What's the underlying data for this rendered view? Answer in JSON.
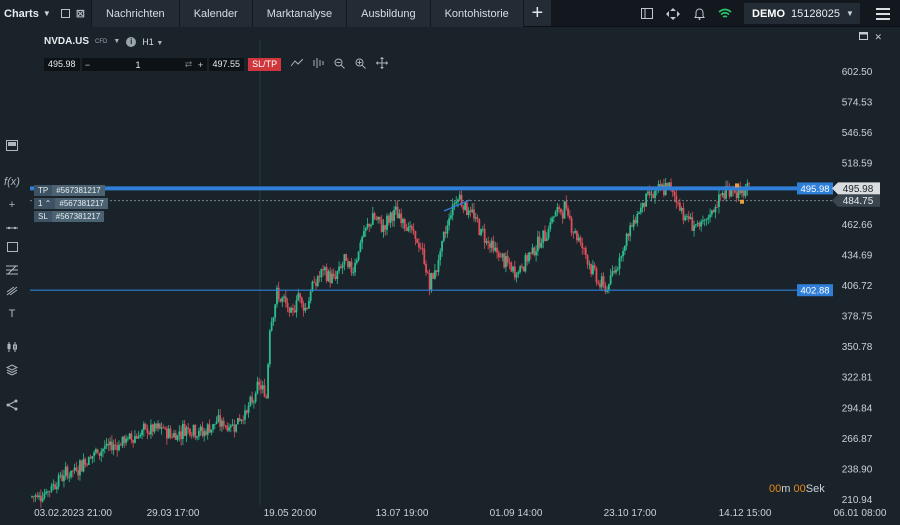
{
  "topbar": {
    "charts_label": "Charts",
    "tabs": [
      "Nachrichten",
      "Kalender",
      "Marktanalyse",
      "Ausbildung",
      "Kontohistorie"
    ],
    "plus": "+",
    "account_mode": "DEMO",
    "account_number": "15128025"
  },
  "header": {
    "symbol": "NVDA.US",
    "symbol_type": "CFD",
    "timeframe": "H1",
    "bid": "495.98",
    "volume": "1",
    "ask": "497.55",
    "sltp_label": "SL/TP"
  },
  "orders": {
    "tp_tag": "TP",
    "tp_id": "#567381217",
    "pos_tag": "1",
    "pos_id": "#567381217",
    "sl_tag": "SL",
    "sl_id": "#567381217"
  },
  "price_labels": {
    "upper_line": "495.98",
    "current": "484.75",
    "lower_line": "402.88"
  },
  "countdown": {
    "minutes": "00",
    "m_suffix": "m",
    "seconds": "00",
    "s_suffix": "Sek"
  },
  "chart_data": {
    "type": "candlestick",
    "y_ticks": [
      "602.50",
      "574.53",
      "546.56",
      "518.59",
      "495.98",
      "462.66",
      "434.69",
      "406.72",
      "378.75",
      "350.78",
      "322.81",
      "294.84",
      "266.87",
      "238.90",
      "210.94"
    ],
    "x_ticks": [
      "03.02.2023 21:00",
      "29.03 17:00",
      "19.05 20:00",
      "13.07 19:00",
      "01.09 14:00",
      "23.10 17:00",
      "14.12 15:00",
      "06.01 08:00"
    ],
    "ylim": [
      210.94,
      602.5
    ],
    "horizontal_lines": [
      {
        "value": 495.98,
        "color": "#2f7fd8",
        "style": "thick"
      },
      {
        "value": 484.75,
        "color": "#aab3ba",
        "style": "dashed"
      },
      {
        "value": 402.88,
        "color": "#2f7fd8",
        "style": "thin"
      }
    ],
    "trend_anchors": [
      [
        0,
        214
      ],
      [
        4,
        218
      ],
      [
        8,
        232
      ],
      [
        12,
        238
      ],
      [
        16,
        250
      ],
      [
        20,
        258
      ],
      [
        24,
        262
      ],
      [
        28,
        268
      ],
      [
        32,
        274
      ],
      [
        36,
        276
      ],
      [
        40,
        270
      ],
      [
        44,
        278
      ],
      [
        48,
        272
      ],
      [
        52,
        282
      ],
      [
        56,
        278
      ],
      [
        60,
        290
      ],
      [
        62,
        300
      ],
      [
        64,
        316
      ],
      [
        66,
        305
      ],
      [
        67,
        372
      ],
      [
        69,
        398
      ],
      [
        71,
        392
      ],
      [
        73,
        378
      ],
      [
        75,
        400
      ],
      [
        77,
        386
      ],
      [
        79,
        406
      ],
      [
        82,
        420
      ],
      [
        85,
        412
      ],
      [
        88,
        430
      ],
      [
        90,
        420
      ],
      [
        93,
        450
      ],
      [
        96,
        470
      ],
      [
        99,
        460
      ],
      [
        102,
        474
      ],
      [
        105,
        466
      ],
      [
        108,
        450
      ],
      [
        110,
        436
      ],
      [
        112,
        408
      ],
      [
        114,
        424
      ],
      [
        116,
        450
      ],
      [
        118,
        476
      ],
      [
        120,
        490
      ],
      [
        122,
        480
      ],
      [
        124,
        472
      ],
      [
        127,
        455
      ],
      [
        130,
        440
      ],
      [
        133,
        430
      ],
      [
        136,
        418
      ],
      [
        138,
        425
      ],
      [
        141,
        440
      ],
      [
        144,
        450
      ],
      [
        147,
        472
      ],
      [
        150,
        478
      ],
      [
        153,
        456
      ],
      [
        156,
        436
      ],
      [
        158,
        420
      ],
      [
        160,
        408
      ],
      [
        162,
        405
      ],
      [
        164,
        420
      ],
      [
        167,
        446
      ],
      [
        170,
        470
      ],
      [
        173,
        488
      ],
      [
        176,
        492
      ],
      [
        179,
        498
      ],
      [
        181,
        490
      ],
      [
        184,
        470
      ],
      [
        187,
        462
      ],
      [
        189,
        460
      ],
      [
        192,
        478
      ],
      [
        195,
        492
      ],
      [
        197,
        496
      ],
      [
        200,
        490
      ],
      [
        203,
        496
      ]
    ]
  }
}
